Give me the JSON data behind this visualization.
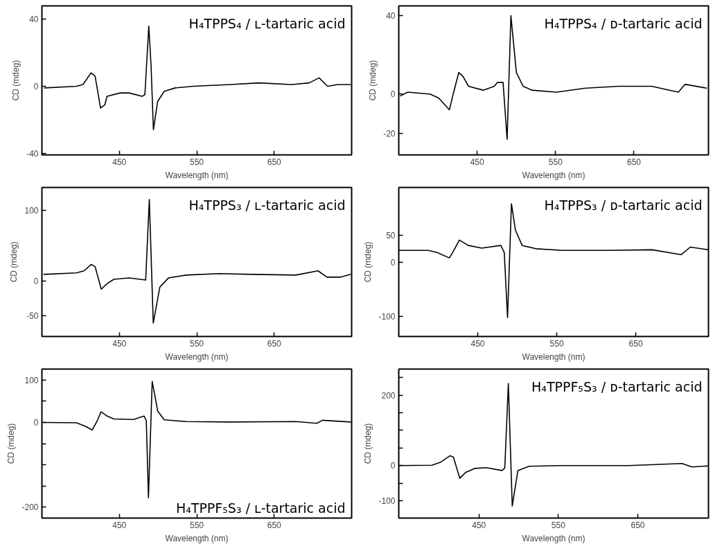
{
  "chart_data": [
    {
      "type": "line",
      "title": "H₄TPPS₄ / ʟ-tartaric acid",
      "xlabel": "Wavelength (nm)",
      "ylabel": "CD (mdeg)",
      "xlim": [
        350,
        750
      ],
      "xticks": [
        450,
        550,
        650
      ],
      "ylim": [
        -41,
        48
      ],
      "yticks": [
        -40,
        0,
        40
      ],
      "grid": false,
      "line_style": "solid",
      "series": [
        {
          "color": "#000000",
          "x": [
            353,
            394.5,
            403,
            413.5,
            418.7,
            425.7,
            431.4,
            434,
            451,
            462.6,
            479.6,
            483,
            488,
            491,
            494,
            499.5,
            508,
            522,
            545,
            593,
            630,
            672.6,
            695,
            708,
            719,
            732,
            749
          ],
          "values": [
            -1,
            0,
            1,
            8,
            6,
            -13,
            -11,
            -6,
            -4,
            -4,
            -6,
            -5,
            36,
            12,
            -26,
            -9,
            -3,
            -1,
            0,
            1,
            2,
            1,
            2,
            5,
            0,
            1,
            1
          ]
        }
      ]
    },
    {
      "type": "line",
      "title": "H₄TPPS₄ / ᴅ-tartaric acid",
      "xlabel": "Wavelength (nm)",
      "ylabel": "CD (mdeg)",
      "xlim": [
        350,
        745
      ],
      "xticks": [
        450,
        550,
        650
      ],
      "ylim": [
        -31,
        45
      ],
      "yticks": [
        -20,
        0,
        40
      ],
      "grid": false,
      "line_style": "solid",
      "series": [
        {
          "color": "#000000",
          "x": [
            351.6,
            361.5,
            390,
            401,
            414.6,
            419.4,
            426.5,
            432,
            439,
            457.6,
            471.8,
            476,
            483,
            488.2,
            493,
            500,
            508.6,
            520,
            551,
            587.8,
            630,
            672.6,
            706.6,
            715,
            743
          ],
          "values": [
            -1,
            1,
            0,
            -2,
            -8,
            0,
            11,
            9,
            4,
            2,
            4,
            6,
            6,
            -23,
            40,
            11,
            4,
            2,
            1,
            3,
            4,
            4,
            1,
            5,
            3
          ]
        }
      ]
    },
    {
      "type": "line",
      "title": "H₄TPPS₃ / ʟ-tartaric acid",
      "xlabel": "Wavelength (nm)",
      "ylabel": "CD (mdeg)",
      "xlim": [
        350,
        750
      ],
      "xticks": [
        450,
        550,
        650
      ],
      "ylim": [
        -79,
        132
      ],
      "yticks": [
        -50,
        0,
        100
      ],
      "grid": false,
      "line_style": "solid",
      "series": [
        {
          "color": "#000000",
          "x": [
            352,
            394.5,
            404.5,
            413.5,
            418.7,
            426.6,
            434.3,
            442.8,
            462.6,
            484,
            488.7,
            493.8,
            502.3,
            513.7,
            536.4,
            579,
            621.5,
            678,
            706.6,
            718,
            735,
            749
          ],
          "values": [
            9,
            11,
            14,
            23,
            20,
            -12,
            -4,
            2,
            4,
            1,
            115,
            -60,
            -9,
            4,
            8,
            10,
            9,
            8,
            14,
            5,
            5,
            9
          ]
        }
      ]
    },
    {
      "type": "line",
      "title": "H₄TPPS₃ / ᴅ-tartaric acid",
      "xlabel": "Wavelength (nm)",
      "ylabel": "CD (mdeg)",
      "xlim": [
        350,
        742
      ],
      "xticks": [
        450,
        550,
        650
      ],
      "ylim": [
        -137,
        138
      ],
      "yticks": [
        -100,
        0,
        50
      ],
      "grid": false,
      "line_style": "solid",
      "series": [
        {
          "color": "#000000",
          "x": [
            350.1,
            387,
            398.4,
            414,
            418.2,
            426.7,
            438,
            455,
            479.2,
            483.5,
            487.7,
            492.6,
            497.7,
            506.2,
            523.2,
            557.2,
            614,
            670.7,
            707.6,
            719,
            741.6
          ],
          "values": [
            22,
            22,
            18,
            8,
            18,
            41,
            31,
            26,
            31,
            18,
            -102,
            108,
            59,
            31,
            25,
            22,
            22,
            23,
            14,
            28,
            23
          ]
        }
      ]
    },
    {
      "type": "line",
      "title": "H₄TPPF₅S₃ / ʟ-tartaric acid",
      "xlabel": "Wavelength (nm)",
      "ylabel": "CD (mdeg)",
      "xlim": [
        350,
        750
      ],
      "xticks": [
        450,
        550,
        650
      ],
      "ylim": [
        -226,
        126
      ],
      "yticks": [
        -200,
        {
          "value": -150,
          "label": null
        },
        {
          "value": -100,
          "label": null
        },
        {
          "value": -50,
          "label": null
        },
        0,
        {
          "value": 50,
          "label": null
        },
        100
      ],
      "grid": false,
      "line_style": "solid",
      "series": [
        {
          "color": "#000000",
          "x": [
            352,
            394.5,
            406,
            415,
            421.5,
            426.3,
            434.3,
            442.8,
            468.3,
            482,
            484.8,
            487.6,
            492.4,
            499.5,
            508,
            536.4,
            593,
            678,
            705,
            712.3,
            749
          ],
          "values": [
            0,
            -1,
            -9,
            -18,
            4,
            25,
            15,
            8,
            7,
            15,
            4,
            -178,
            97,
            27,
            6,
            2,
            1,
            2,
            -2,
            5,
            1
          ]
        }
      ]
    },
    {
      "type": "line",
      "title": "H₄TPPF₅S₃ / ᴅ-tartaric acid",
      "xlabel": "Wavelength (nm)",
      "ylabel": "CD (mdeg)",
      "xlim": [
        349,
        739
      ],
      "xticks": [
        450,
        550,
        650
      ],
      "ylim": [
        -149,
        274
      ],
      "yticks": [
        -100,
        {
          "value": -50,
          "label": null
        },
        0,
        {
          "value": 50,
          "label": null
        },
        {
          "value": 100,
          "label": null
        },
        {
          "value": 150,
          "label": null
        },
        200,
        {
          "value": 250,
          "label": null
        }
      ],
      "grid": false,
      "line_style": "solid",
      "series": [
        {
          "color": "#000000",
          "x": [
            349.4,
            390.7,
            402,
            413.5,
            417.8,
            425.8,
            433.5,
            444.9,
            459,
            479,
            482.5,
            487,
            491.9,
            499,
            513.2,
            553,
            638.6,
            705.6,
            718.4,
            738.3
          ],
          "values": [
            0,
            1,
            10,
            28,
            24,
            -36,
            -19,
            -8,
            -6,
            -14,
            -7,
            233,
            -115,
            -14,
            -2,
            0,
            0,
            6,
            -4,
            -1
          ]
        }
      ]
    }
  ]
}
